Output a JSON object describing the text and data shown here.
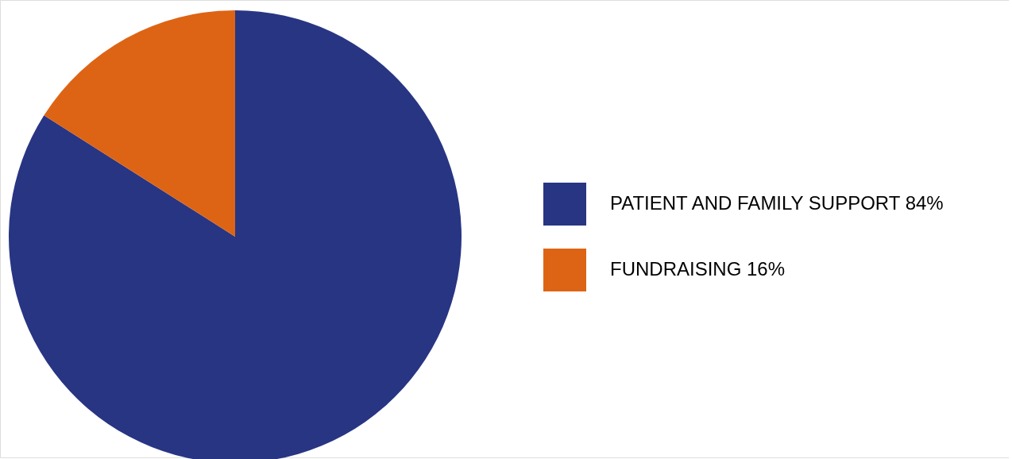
{
  "chart_data": {
    "type": "pie",
    "categories": [
      "PATIENT AND FAMILY SUPPORT",
      "FUNDRAISING"
    ],
    "values": [
      84,
      16
    ],
    "colors": [
      "#283583",
      "#dd6414"
    ],
    "legend": "right",
    "value_labels": [
      "84%",
      "16%"
    ]
  }
}
